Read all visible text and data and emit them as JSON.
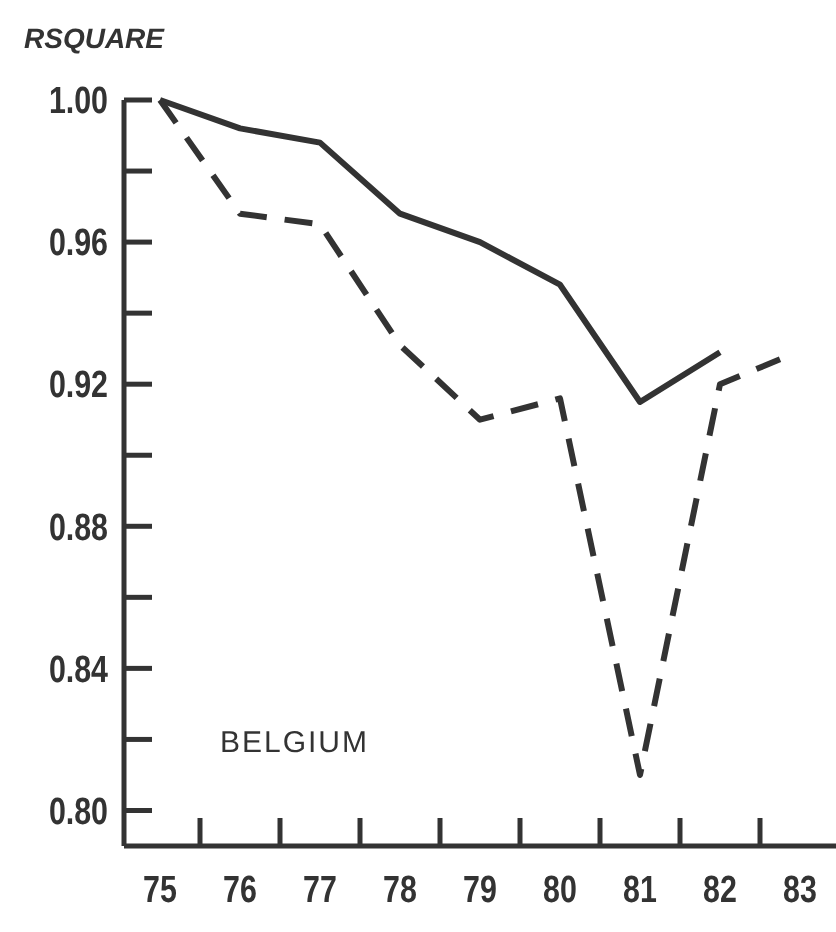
{
  "chart_data": {
    "type": "line",
    "ylabel": "RSQUARE",
    "annotations": [
      "BELGIUM"
    ],
    "xlim": [
      74.55,
      83.45
    ],
    "ylim": [
      0.79,
      1.0
    ],
    "xticks": [
      {
        "value": 75,
        "label": "75"
      },
      {
        "value": 75.5,
        "label": null
      },
      {
        "value": 76,
        "label": "76"
      },
      {
        "value": 76.5,
        "label": null
      },
      {
        "value": 77,
        "label": "77"
      },
      {
        "value": 77.5,
        "label": null
      },
      {
        "value": 78,
        "label": "78"
      },
      {
        "value": 78.5,
        "label": null
      },
      {
        "value": 79,
        "label": "79"
      },
      {
        "value": 79.5,
        "label": null
      },
      {
        "value": 80,
        "label": "80"
      },
      {
        "value": 80.5,
        "label": null
      },
      {
        "value": 81,
        "label": "81"
      },
      {
        "value": 81.5,
        "label": null
      },
      {
        "value": 82,
        "label": "82"
      },
      {
        "value": 82.5,
        "label": null
      },
      {
        "value": 83,
        "label": "83"
      }
    ],
    "yticks": [
      {
        "value": 0.8,
        "label": "0.80"
      },
      {
        "value": 0.82,
        "label": null
      },
      {
        "value": 0.84,
        "label": "0.84"
      },
      {
        "value": 0.86,
        "label": null
      },
      {
        "value": 0.88,
        "label": "0.88"
      },
      {
        "value": 0.9,
        "label": null
      },
      {
        "value": 0.92,
        "label": "0.92"
      },
      {
        "value": 0.94,
        "label": null
      },
      {
        "value": 0.96,
        "label": "0.96"
      },
      {
        "value": 0.98,
        "label": null
      },
      {
        "value": 1.0,
        "label": "1.00"
      }
    ],
    "marker": "none",
    "series": [
      {
        "color": "#333333",
        "line_style": "solid",
        "x": [
          75,
          76,
          77,
          78,
          79,
          80,
          81,
          82
        ],
        "values": [
          1.0,
          0.992,
          0.988,
          0.968,
          0.96,
          0.948,
          0.915,
          0.929
        ]
      },
      {
        "color": "#333333",
        "line_style": "dashed",
        "x": [
          75,
          76,
          77,
          78,
          79,
          80,
          81,
          82,
          82.75
        ],
        "values": [
          1.0,
          0.968,
          0.965,
          0.931,
          0.91,
          0.916,
          0.81,
          0.92,
          0.927
        ]
      }
    ]
  }
}
